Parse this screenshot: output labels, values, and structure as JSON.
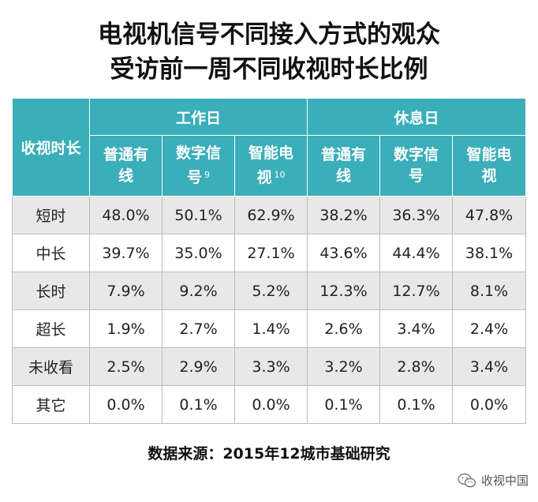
{
  "title": {
    "line1": "电视机信号不同接入方式的观众",
    "line2": "受访前一周不同收视时长比例"
  },
  "table": {
    "corner_label": "收视时长",
    "groups": [
      "工作日",
      "休息日"
    ],
    "sub_headers": [
      {
        "text": "普通有线",
        "line1": "普通有",
        "line2": "线",
        "sup": ""
      },
      {
        "text": "数字信号",
        "line1": "数字信",
        "line2": "号",
        "sup": "9"
      },
      {
        "text": "智能电视",
        "line1": "智能电",
        "line2": "视",
        "sup": "10"
      },
      {
        "text": "普通有线",
        "line1": "普通有",
        "line2": "线",
        "sup": ""
      },
      {
        "text": "数字信号",
        "line1": "数字信",
        "line2": "号",
        "sup": ""
      },
      {
        "text": "智能电视",
        "line1": "智能电",
        "line2": "视",
        "sup": ""
      }
    ],
    "rows": [
      {
        "label": "短时",
        "values": [
          "48.0%",
          "50.1%",
          "62.9%",
          "38.2%",
          "36.3%",
          "47.8%"
        ]
      },
      {
        "label": "中长",
        "values": [
          "39.7%",
          "35.0%",
          "27.1%",
          "43.6%",
          "44.4%",
          "38.1%"
        ]
      },
      {
        "label": "长时",
        "values": [
          "7.9%",
          "9.2%",
          "5.2%",
          "12.3%",
          "12.7%",
          "8.1%"
        ]
      },
      {
        "label": "超长",
        "values": [
          "1.9%",
          "2.7%",
          "1.4%",
          "2.6%",
          "3.4%",
          "2.4%"
        ]
      },
      {
        "label": "未收看",
        "values": [
          "2.5%",
          "2.9%",
          "3.3%",
          "3.2%",
          "2.8%",
          "3.4%"
        ]
      },
      {
        "label": "其它",
        "values": [
          "0.0%",
          "0.1%",
          "0.0%",
          "0.1%",
          "0.1%",
          "0.0%"
        ]
      }
    ]
  },
  "source": "数据来源：2015年12城市基础研究",
  "watermark": {
    "text": "收视中国",
    "icon": "wechat-icon"
  },
  "colors": {
    "header_bg": "#3aaeb9",
    "row_alt": "#e8e8e8"
  }
}
